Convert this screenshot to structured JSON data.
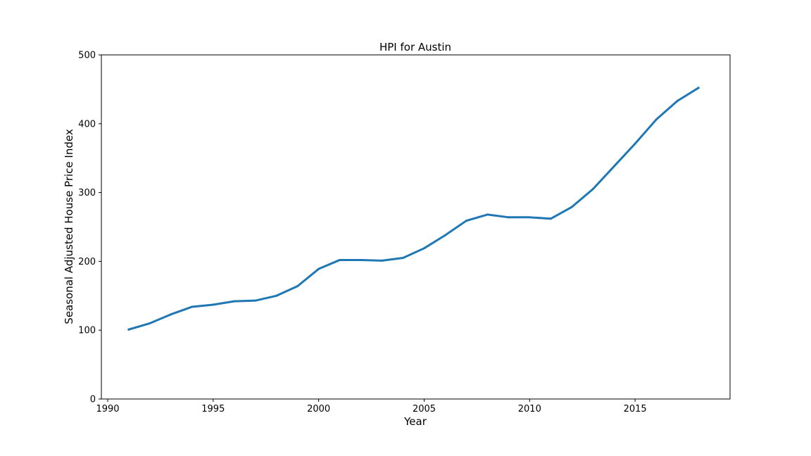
{
  "chart_data": {
    "type": "line",
    "title": "HPI for Austin",
    "xlabel": "Year",
    "ylabel": "Seasonal Adjusted House Price Index",
    "xlim": [
      1989.7,
      2019.5
    ],
    "ylim": [
      0,
      500
    ],
    "xticks": [
      1990,
      1995,
      2000,
      2005,
      2010,
      2015
    ],
    "yticks": [
      0,
      100,
      200,
      300,
      400,
      500
    ],
    "grid": false,
    "line_color": "#1f77b4",
    "series": [
      {
        "x": [
          1991,
          1992,
          1993,
          1994,
          1995,
          1996,
          1997,
          1998,
          1999,
          2000,
          2001,
          2002,
          2003,
          2004,
          2005,
          2006,
          2007,
          2008,
          2009,
          2010,
          2011,
          2012,
          2013,
          2014,
          2015,
          2016,
          2017,
          2018
        ],
        "values": [
          101,
          110,
          123,
          134,
          137,
          142,
          143,
          150,
          164,
          189,
          202,
          202,
          201,
          205,
          219,
          238,
          259,
          268,
          264,
          264,
          262,
          279,
          305,
          338,
          371,
          406,
          433,
          452
        ]
      }
    ]
  }
}
